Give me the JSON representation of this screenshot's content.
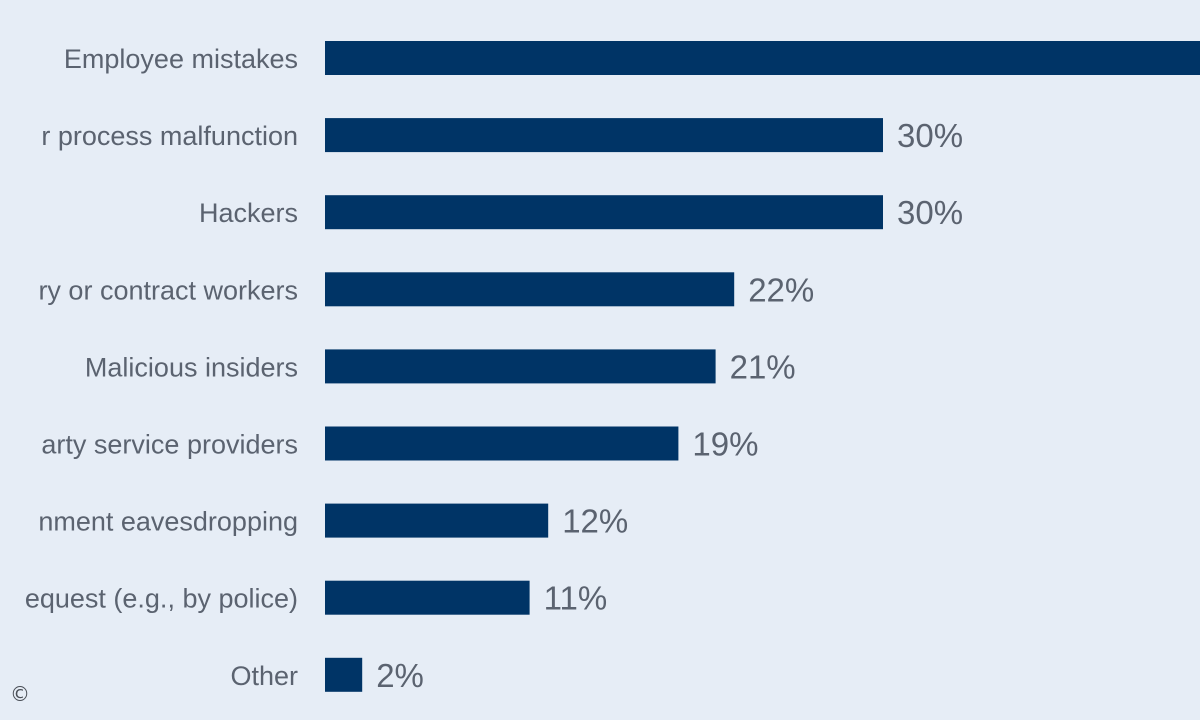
{
  "chart_data": {
    "type": "bar",
    "orientation": "horizontal",
    "categories": [
      "Employee mistakes",
      "r process malfunction",
      "Hackers",
      "ry or contract workers",
      "Malicious insiders",
      "arty service providers",
      "nment eavesdropping",
      "equest (e.g., by police)",
      "Other"
    ],
    "values": [
      null,
      30,
      30,
      22,
      21,
      19,
      12,
      11,
      2
    ],
    "value_labels": [
      "",
      "30%",
      "30%",
      "22%",
      "21%",
      "19%",
      "12%",
      "11%",
      "2%"
    ],
    "estimated_values": [
      48,
      30,
      30,
      22,
      21,
      19,
      12,
      11,
      2
    ],
    "xlim": [
      0,
      48
    ],
    "bar_color": "#003466"
  },
  "footer": {
    "copyright_symbol": "©"
  }
}
